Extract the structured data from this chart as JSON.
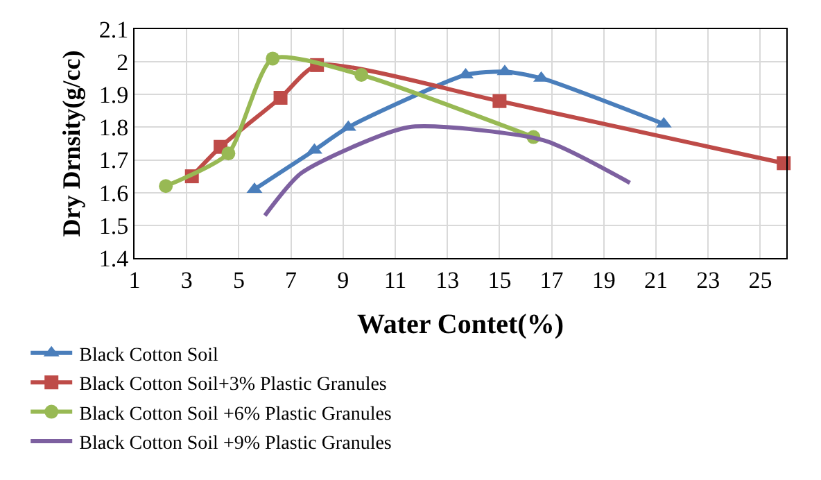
{
  "chart_data": {
    "type": "line",
    "xlabel": "Water Contet(%)",
    "ylabel": "Dry Drnsity(g/cc)",
    "xlim": [
      1,
      26
    ],
    "xticks": [
      1,
      3,
      5,
      7,
      9,
      11,
      13,
      15,
      17,
      19,
      21,
      23,
      25
    ],
    "ylim": [
      1.4,
      2.1
    ],
    "yticks": [
      1.4,
      1.5,
      1.6,
      1.7,
      1.8,
      1.9,
      2,
      2.1
    ],
    "grid": true,
    "legend": "bottom",
    "series": [
      {
        "name": "Black Cotton Soil",
        "color": "#4a7ebb",
        "marker": "triangle",
        "x": [
          5.6,
          7.9,
          9.2,
          13.7,
          15.2,
          16.6,
          21.3
        ],
        "values": [
          1.61,
          1.73,
          1.8,
          1.96,
          1.97,
          1.95,
          1.81
        ]
      },
      {
        "name": "Black Cotton Soil+3% Plastic Granules",
        "color": "#be4b48",
        "marker": "square",
        "x": [
          3.2,
          4.3,
          6.6,
          8.0,
          15.0,
          25.9
        ],
        "values": [
          1.65,
          1.74,
          1.89,
          1.99,
          1.88,
          1.69
        ]
      },
      {
        "name": "Black Cotton Soil +6% Plastic Granules",
        "color": "#98b954",
        "marker": "circle",
        "x": [
          2.2,
          4.6,
          6.3,
          9.7,
          16.3
        ],
        "values": [
          1.62,
          1.72,
          2.01,
          1.96,
          1.77
        ]
      },
      {
        "name": "Black Cotton Soil +9% Plastic Granules",
        "color": "#7d60a0",
        "marker": "none",
        "x": [
          6.0,
          7.4,
          11.5,
          16.7,
          20.0
        ],
        "values": [
          1.53,
          1.66,
          1.8,
          1.76,
          1.63
        ]
      }
    ]
  }
}
